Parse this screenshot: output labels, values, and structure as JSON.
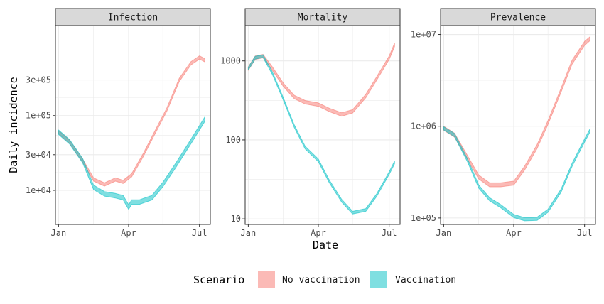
{
  "chart_data": {
    "type": "area",
    "xlabel": "Date",
    "ylabel": "Daily incidence",
    "x_ticks": [
      "Jan",
      "Apr",
      "Jul"
    ],
    "x_tick_dates": [
      "2021-01-01",
      "2021-04-01",
      "2021-07-01"
    ],
    "legend": {
      "title": "Scenario",
      "position": "bottom",
      "entries": [
        {
          "label": "No vaccination",
          "color": "#F8766D"
        },
        {
          "label": "Vaccination",
          "color": "#00BFC4"
        }
      ]
    },
    "colors": {
      "no_vaccination": "#F8766D",
      "vaccination": "#00BFC4",
      "strip_fill": "#d9d9d9",
      "grid": "#ebebeb"
    },
    "grid": true,
    "y_scale": "log10",
    "panels": [
      {
        "title": "Infection",
        "y_ticks": [
          {
            "value": 10000,
            "label": "1e+04"
          },
          {
            "value": 30000,
            "label": "3e+04"
          },
          {
            "value": 100000,
            "label": "1e+05"
          },
          {
            "value": 300000,
            "label": "3e+05"
          }
        ],
        "ylim": [
          3500,
          1600000
        ],
        "series": [
          {
            "name": "No vaccination",
            "band": 0.05,
            "x": [
              "2021-01-01",
              "2021-01-15",
              "2021-02-01",
              "2021-02-15",
              "2021-03-01",
              "2021-03-15",
              "2021-03-25",
              "2021-04-05",
              "2021-04-20",
              "2021-05-05",
              "2021-05-20",
              "2021-06-05",
              "2021-06-20",
              "2021-07-01",
              "2021-07-08"
            ],
            "y": [
              60000,
              45000,
              25000,
              14000,
              12000,
              14000,
              13000,
              16000,
              30000,
              60000,
              120000,
              300000,
              500000,
              600000,
              550000
            ]
          },
          {
            "name": "Vaccination",
            "band": 0.07,
            "x": [
              "2021-01-01",
              "2021-01-15",
              "2021-02-01",
              "2021-02-15",
              "2021-03-01",
              "2021-03-15",
              "2021-03-25",
              "2021-04-01",
              "2021-04-05",
              "2021-04-15",
              "2021-05-01",
              "2021-05-15",
              "2021-06-01",
              "2021-06-20",
              "2021-07-08"
            ],
            "y": [
              60000,
              45000,
              25000,
              11000,
              9000,
              8500,
              8000,
              6000,
              7000,
              7000,
              8000,
              12000,
              22000,
              45000,
              90000
            ]
          }
        ]
      },
      {
        "title": "Mortality",
        "y_ticks": [
          {
            "value": 10,
            "label": "10"
          },
          {
            "value": 100,
            "label": "100"
          },
          {
            "value": 1000,
            "label": "1000"
          }
        ],
        "ylim": [
          8.5,
          2800
        ],
        "series": [
          {
            "name": "No vaccination",
            "band": 0.05,
            "x": [
              "2021-01-01",
              "2021-01-10",
              "2021-01-20",
              "2021-02-01",
              "2021-02-15",
              "2021-03-01",
              "2021-03-15",
              "2021-04-01",
              "2021-04-15",
              "2021-05-01",
              "2021-05-15",
              "2021-06-01",
              "2021-06-15",
              "2021-07-01",
              "2021-07-08"
            ],
            "y": [
              800,
              1100,
              1150,
              800,
              500,
              350,
              300,
              280,
              240,
              210,
              230,
              360,
              600,
              1100,
              1600
            ]
          },
          {
            "name": "Vaccination",
            "band": 0.04,
            "x": [
              "2021-01-01",
              "2021-01-10",
              "2021-01-20",
              "2021-02-01",
              "2021-02-15",
              "2021-03-01",
              "2021-03-15",
              "2021-04-01",
              "2021-04-15",
              "2021-05-01",
              "2021-05-15",
              "2021-06-01",
              "2021-06-15",
              "2021-07-01",
              "2021-07-08"
            ],
            "y": [
              800,
              1100,
              1150,
              700,
              330,
              150,
              80,
              55,
              30,
              17,
              12,
              13,
              20,
              38,
              52
            ]
          }
        ]
      },
      {
        "title": "Prevalence",
        "y_ticks": [
          {
            "value": 100000,
            "label": "1e+05"
          },
          {
            "value": 1000000,
            "label": "1e+06"
          },
          {
            "value": 10000000,
            "label": "1e+07"
          }
        ],
        "ylim": [
          85000,
          12500000
        ],
        "series": [
          {
            "name": "No vaccination",
            "band": 0.05,
            "x": [
              "2021-01-01",
              "2021-01-15",
              "2021-02-01",
              "2021-02-15",
              "2021-03-01",
              "2021-03-15",
              "2021-04-01",
              "2021-04-15",
              "2021-05-01",
              "2021-05-15",
              "2021-06-01",
              "2021-06-15",
              "2021-07-01",
              "2021-07-08"
            ],
            "y": [
              950000,
              800000,
              450000,
              280000,
              230000,
              230000,
              240000,
              350000,
              600000,
              1100000,
              2500000,
              5000000,
              8000000,
              9000000
            ]
          },
          {
            "name": "Vaccination",
            "band": 0.04,
            "x": [
              "2021-01-01",
              "2021-01-15",
              "2021-02-01",
              "2021-02-15",
              "2021-03-01",
              "2021-03-15",
              "2021-04-01",
              "2021-04-15",
              "2021-05-01",
              "2021-05-15",
              "2021-06-01",
              "2021-06-15",
              "2021-07-01",
              "2021-07-08"
            ],
            "y": [
              950000,
              800000,
              420000,
              220000,
              160000,
              135000,
              105000,
              97000,
              98000,
              120000,
              200000,
              380000,
              700000,
              900000
            ]
          }
        ]
      }
    ]
  }
}
